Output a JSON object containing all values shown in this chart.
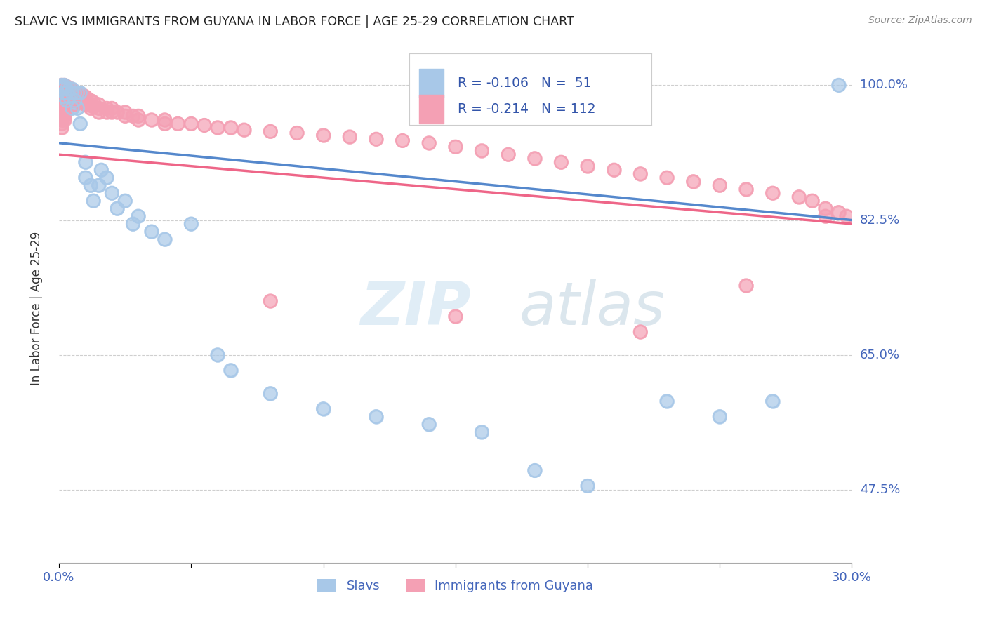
{
  "title": "SLAVIC VS IMMIGRANTS FROM GUYANA IN LABOR FORCE | AGE 25-29 CORRELATION CHART",
  "source": "Source: ZipAtlas.com",
  "ylabel": "In Labor Force | Age 25-29",
  "ytick_labels": [
    "100.0%",
    "82.5%",
    "65.0%",
    "47.5%"
  ],
  "ytick_values": [
    1.0,
    0.825,
    0.65,
    0.475
  ],
  "xlim": [
    0.0,
    0.3
  ],
  "ylim": [
    0.38,
    1.04
  ],
  "watermark_zip": "ZIP",
  "watermark_atlas": "atlas",
  "legend_text1": "R = -0.106   N =  51",
  "legend_text2": "R = -0.214   N = 112",
  "color_slavs": "#a8c8e8",
  "color_guyana": "#f4a0b4",
  "color_slavs_line": "#5588cc",
  "color_guyana_line": "#ee6688",
  "color_label_blue": "#4466bb",
  "color_r_value": "#3355aa",
  "slavs_x": [
    0.001,
    0.001,
    0.001,
    0.001,
    0.002,
    0.002,
    0.002,
    0.002,
    0.002,
    0.003,
    0.003,
    0.003,
    0.004,
    0.004,
    0.005,
    0.005,
    0.005,
    0.006,
    0.006,
    0.007,
    0.007,
    0.008,
    0.008,
    0.01,
    0.01,
    0.012,
    0.013,
    0.015,
    0.016,
    0.018,
    0.02,
    0.022,
    0.025,
    0.028,
    0.03,
    0.035,
    0.04,
    0.05,
    0.06,
    0.065,
    0.08,
    0.1,
    0.12,
    0.14,
    0.16,
    0.18,
    0.2,
    0.23,
    0.25,
    0.27,
    0.295
  ],
  "slavs_y": [
    1.0,
    0.998,
    0.996,
    0.994,
    1.0,
    0.998,
    0.996,
    0.99,
    0.985,
    0.995,
    0.99,
    0.98,
    0.995,
    0.985,
    0.995,
    0.99,
    0.97,
    0.99,
    0.98,
    0.99,
    0.97,
    0.99,
    0.95,
    0.9,
    0.88,
    0.87,
    0.85,
    0.87,
    0.89,
    0.88,
    0.86,
    0.84,
    0.85,
    0.82,
    0.83,
    0.81,
    0.8,
    0.82,
    0.65,
    0.63,
    0.6,
    0.58,
    0.57,
    0.56,
    0.55,
    0.5,
    0.48,
    0.59,
    0.57,
    0.59,
    1.0
  ],
  "guyana_x": [
    0.001,
    0.001,
    0.001,
    0.001,
    0.001,
    0.001,
    0.001,
    0.001,
    0.001,
    0.001,
    0.001,
    0.001,
    0.001,
    0.001,
    0.001,
    0.002,
    0.002,
    0.002,
    0.002,
    0.002,
    0.002,
    0.002,
    0.002,
    0.002,
    0.002,
    0.002,
    0.002,
    0.003,
    0.003,
    0.003,
    0.003,
    0.003,
    0.004,
    0.004,
    0.004,
    0.004,
    0.005,
    0.005,
    0.005,
    0.005,
    0.006,
    0.006,
    0.006,
    0.006,
    0.007,
    0.007,
    0.007,
    0.008,
    0.008,
    0.008,
    0.009,
    0.009,
    0.01,
    0.01,
    0.01,
    0.012,
    0.012,
    0.012,
    0.013,
    0.013,
    0.015,
    0.015,
    0.015,
    0.018,
    0.018,
    0.02,
    0.02,
    0.022,
    0.025,
    0.025,
    0.028,
    0.03,
    0.03,
    0.035,
    0.04,
    0.04,
    0.045,
    0.05,
    0.055,
    0.06,
    0.065,
    0.07,
    0.08,
    0.09,
    0.1,
    0.11,
    0.12,
    0.13,
    0.14,
    0.15,
    0.16,
    0.17,
    0.18,
    0.19,
    0.2,
    0.21,
    0.22,
    0.23,
    0.24,
    0.25,
    0.26,
    0.27,
    0.28,
    0.285,
    0.29,
    0.295,
    0.298,
    0.08,
    0.15,
    0.22,
    0.26,
    0.29
  ],
  "guyana_y": [
    1.0,
    0.998,
    0.996,
    0.994,
    0.992,
    0.99,
    0.985,
    0.98,
    0.975,
    0.97,
    0.965,
    0.96,
    0.955,
    0.95,
    0.945,
    1.0,
    0.998,
    0.996,
    0.992,
    0.988,
    0.985,
    0.98,
    0.975,
    0.97,
    0.965,
    0.96,
    0.955,
    0.998,
    0.994,
    0.99,
    0.985,
    0.98,
    0.996,
    0.992,
    0.988,
    0.982,
    0.994,
    0.99,
    0.985,
    0.98,
    0.99,
    0.985,
    0.98,
    0.975,
    0.99,
    0.985,
    0.98,
    0.988,
    0.983,
    0.978,
    0.987,
    0.982,
    0.985,
    0.98,
    0.975,
    0.98,
    0.975,
    0.97,
    0.978,
    0.972,
    0.975,
    0.97,
    0.965,
    0.97,
    0.965,
    0.97,
    0.965,
    0.965,
    0.965,
    0.96,
    0.96,
    0.96,
    0.955,
    0.955,
    0.955,
    0.95,
    0.95,
    0.95,
    0.948,
    0.945,
    0.945,
    0.942,
    0.94,
    0.938,
    0.935,
    0.933,
    0.93,
    0.928,
    0.925,
    0.92,
    0.915,
    0.91,
    0.905,
    0.9,
    0.895,
    0.89,
    0.885,
    0.88,
    0.875,
    0.87,
    0.865,
    0.86,
    0.855,
    0.85,
    0.84,
    0.835,
    0.83,
    0.72,
    0.7,
    0.68,
    0.74,
    0.83
  ]
}
